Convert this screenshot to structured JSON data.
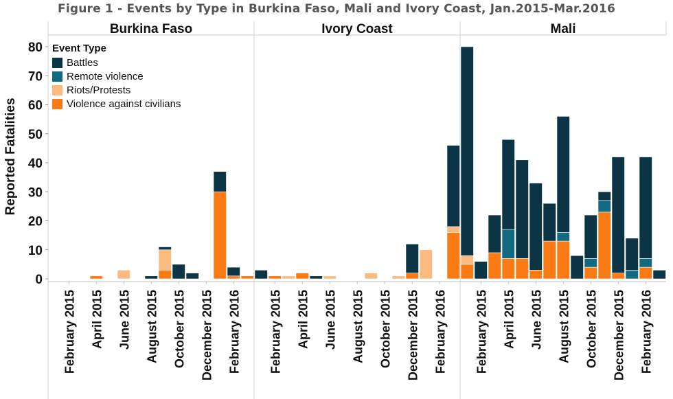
{
  "title": "Figure 1 - Events by Type in Burkina Faso, Mali and Ivory Coast, Jan.2015-Mar.2016",
  "colors": {
    "Battles": "#0b3445",
    "Remote violence": "#136a80",
    "Riots/Protests": "#fbbb80",
    "Violence against civilians": "#fa7b14"
  },
  "legend": {
    "title": "Event Type",
    "items": [
      "Battles",
      "Remote violence",
      "Riots/Protests",
      "Violence against civilians"
    ]
  },
  "chart_data": {
    "type": "bar",
    "stacked": true,
    "ylabel": "Reported Fatalities",
    "ylim": [
      0,
      84
    ],
    "yticks": [
      0,
      10,
      20,
      30,
      40,
      50,
      60,
      70,
      80
    ],
    "grid": false,
    "legend_position": "top-left",
    "categories": [
      "Jan 2015",
      "Feb 2015",
      "Mar 2015",
      "Apr 2015",
      "May 2015",
      "Jun 2015",
      "Jul 2015",
      "Aug 2015",
      "Sep 2015",
      "Oct 2015",
      "Nov 2015",
      "Dec 2015",
      "Jan 2016",
      "Feb 2016",
      "Mar 2016"
    ],
    "tick_labels": [
      "February 2015",
      "April 2015",
      "June 2015",
      "August 2015",
      "October 2015",
      "December 2015",
      "February 2016"
    ],
    "tick_indices": [
      1,
      3,
      5,
      7,
      9,
      11,
      13
    ],
    "panels": [
      {
        "name": "Burkina Faso",
        "series": [
          {
            "name": "Battles",
            "values": [
              0,
              0,
              0,
              0,
              0,
              0,
              0,
              1,
              1,
              5,
              2,
              0,
              7,
              3,
              0
            ]
          },
          {
            "name": "Remote violence",
            "values": [
              0,
              0,
              0,
              0,
              0,
              0,
              0,
              0,
              0,
              0,
              0,
              0,
              0,
              0,
              0
            ]
          },
          {
            "name": "Riots/Protests",
            "values": [
              0,
              0,
              0,
              0,
              0,
              3,
              0,
              0,
              7,
              0,
              0,
              0,
              0,
              0,
              0
            ]
          },
          {
            "name": "Violence against civilians",
            "values": [
              0,
              0,
              0,
              1,
              0,
              0,
              0,
              0,
              3,
              0,
              0,
              0,
              30,
              1,
              1
            ]
          }
        ]
      },
      {
        "name": "Ivory Coast",
        "series": [
          {
            "name": "Battles",
            "values": [
              3,
              0,
              0,
              0,
              1,
              0,
              0,
              0,
              0,
              0,
              0,
              10,
              0,
              0,
              28
            ]
          },
          {
            "name": "Remote violence",
            "values": [
              0,
              0,
              0,
              0,
              0,
              0,
              0,
              0,
              0,
              0,
              0,
              0,
              0,
              0,
              0
            ]
          },
          {
            "name": "Riots/Protests",
            "values": [
              0,
              0,
              1,
              0,
              0,
              1,
              0,
              0,
              2,
              0,
              1,
              0,
              10,
              0,
              2
            ]
          },
          {
            "name": "Violence against civilians",
            "values": [
              0,
              1,
              0,
              2,
              0,
              0,
              0,
              0,
              0,
              0,
              0,
              2,
              0,
              0,
              16
            ]
          }
        ]
      },
      {
        "name": "Mali",
        "series": [
          {
            "name": "Battles",
            "values": [
              72,
              6,
              13,
              31,
              34,
              30,
              13,
              40,
              8,
              15,
              3,
              40,
              11,
              35,
              3
            ]
          },
          {
            "name": "Remote violence",
            "values": [
              0,
              0,
              0,
              10,
              0,
              0,
              0,
              3,
              0,
              3,
              4,
              0,
              3,
              3,
              0
            ]
          },
          {
            "name": "Riots/Protests",
            "values": [
              3,
              0,
              0,
              0,
              0,
              0,
              0,
              0,
              0,
              0,
              0,
              0,
              0,
              0,
              0
            ]
          },
          {
            "name": "Violence against civilians",
            "values": [
              5,
              0,
              9,
              7,
              7,
              3,
              13,
              13,
              0,
              4,
              23,
              2,
              0,
              4,
              0
            ]
          }
        ]
      }
    ]
  }
}
